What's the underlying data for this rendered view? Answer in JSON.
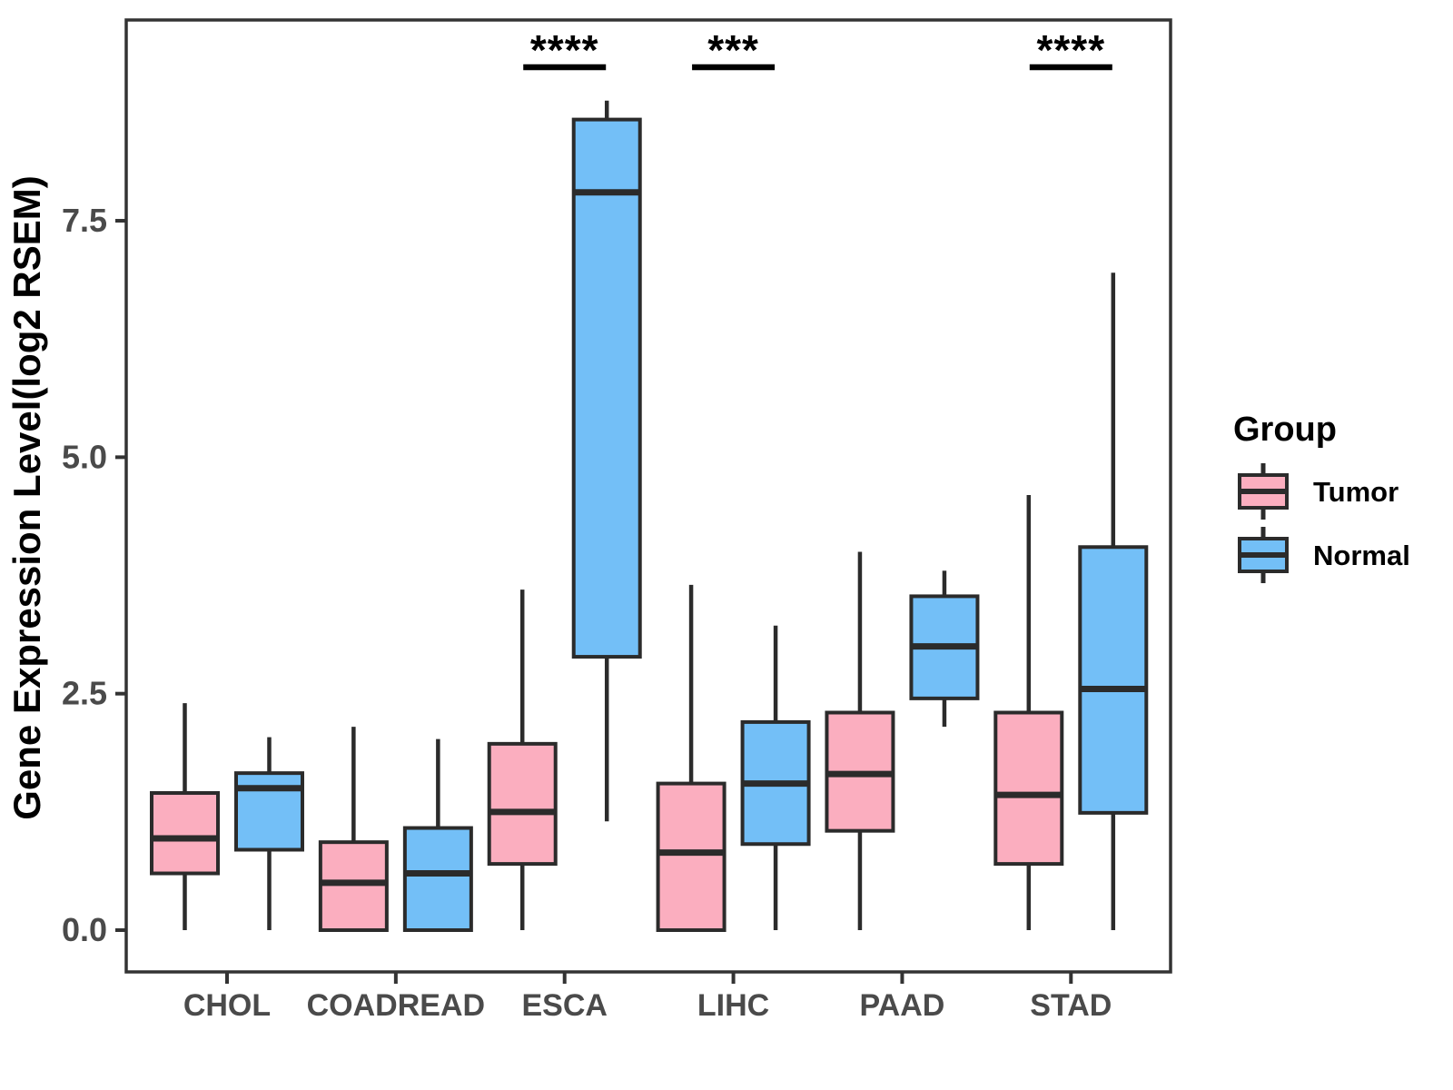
{
  "legend": {
    "title": "Group",
    "items": [
      {
        "label": "Tumor",
        "color": "#FBAEBF"
      },
      {
        "label": "Normal",
        "color": "#73BFF7"
      }
    ]
  },
  "colors": {
    "tumor_fill": "#FBAEBF",
    "normal_fill": "#73BFF7",
    "box_border": "#2B2B2B",
    "panel_border": "#333333",
    "tick_label": "#4A4A4A",
    "axis_title": "#000000",
    "significance": "#000000",
    "background": "#FFFFFF"
  },
  "chart_data": {
    "type": "boxplot",
    "title": "",
    "xlabel": "",
    "ylabel": "Gene Expression Level(log2 RSEM)",
    "grid": false,
    "legend_position": "right",
    "categories": [
      "CHOL",
      "COADREAD",
      "ESCA",
      "LIHC",
      "PAAD",
      "STAD"
    ],
    "groups": [
      "Tumor",
      "Normal"
    ],
    "y_ticks": [
      {
        "label": "0.0",
        "value": 0.0
      },
      {
        "label": "2.5",
        "value": 2.5
      },
      {
        "label": "5.0",
        "value": 5.0
      },
      {
        "label": "7.5",
        "value": 7.5
      }
    ],
    "ylim": [
      -0.45,
      9.6
    ],
    "series": [
      {
        "name": "Tumor",
        "color": "#FBAEBF",
        "boxes": [
          {
            "category": "CHOL",
            "whisker_low": 0.0,
            "q1": 0.6,
            "median": 0.97,
            "q3": 1.45,
            "whisker_high": 2.4
          },
          {
            "category": "COADREAD",
            "whisker_low": 0.0,
            "q1": 0.0,
            "median": 0.5,
            "q3": 0.93,
            "whisker_high": 2.15
          },
          {
            "category": "ESCA",
            "whisker_low": 0.0,
            "q1": 0.7,
            "median": 1.25,
            "q3": 1.97,
            "whisker_high": 3.6
          },
          {
            "category": "LIHC",
            "whisker_low": 0.0,
            "q1": 0.0,
            "median": 0.82,
            "q3": 1.55,
            "whisker_high": 3.65
          },
          {
            "category": "PAAD",
            "whisker_low": 0.0,
            "q1": 1.05,
            "median": 1.65,
            "q3": 2.3,
            "whisker_high": 4.0
          },
          {
            "category": "STAD",
            "whisker_low": 0.0,
            "q1": 0.7,
            "median": 1.43,
            "q3": 2.3,
            "whisker_high": 4.6
          }
        ]
      },
      {
        "name": "Normal",
        "color": "#73BFF7",
        "boxes": [
          {
            "category": "CHOL",
            "whisker_low": 0.0,
            "q1": 0.85,
            "median": 1.5,
            "q3": 1.66,
            "whisker_high": 2.04
          },
          {
            "category": "COADREAD",
            "whisker_low": 0.0,
            "q1": 0.0,
            "median": 0.6,
            "q3": 1.08,
            "whisker_high": 2.02
          },
          {
            "category": "ESCA",
            "whisker_low": 1.15,
            "q1": 2.89,
            "median": 7.8,
            "q3": 8.57,
            "whisker_high": 8.77
          },
          {
            "category": "LIHC",
            "whisker_low": 0.0,
            "q1": 0.91,
            "median": 1.55,
            "q3": 2.2,
            "whisker_high": 3.22
          },
          {
            "category": "PAAD",
            "whisker_low": 2.15,
            "q1": 2.45,
            "median": 3.0,
            "q3": 3.53,
            "whisker_high": 3.8
          },
          {
            "category": "STAD",
            "whisker_low": 0.0,
            "q1": 1.24,
            "median": 2.55,
            "q3": 4.05,
            "whisker_high": 6.95
          }
        ]
      }
    ],
    "significance": [
      {
        "category": "ESCA",
        "label": "****"
      },
      {
        "category": "LIHC",
        "label": "***"
      },
      {
        "category": "STAD",
        "label": "****"
      }
    ]
  }
}
